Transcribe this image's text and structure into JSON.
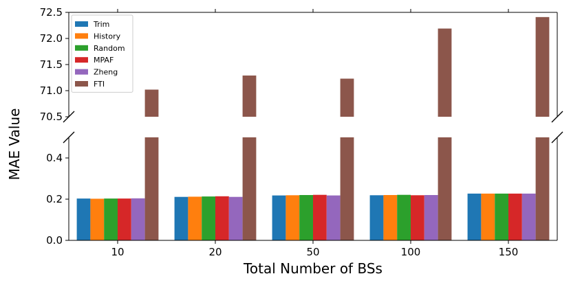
{
  "chart_data": {
    "type": "bar",
    "title": "",
    "xlabel": "Total Number of BSs",
    "ylabel": "MAE Value",
    "categories": [
      "10",
      "20",
      "50",
      "100",
      "150"
    ],
    "broken_axis": true,
    "upper_ylim": [
      70.5,
      72.5
    ],
    "upper_yticks": [
      "70.5",
      "71.0",
      "71.5",
      "72.0",
      "72.5"
    ],
    "lower_ylim": [
      0,
      0.5
    ],
    "lower_yticks": [
      "0.0",
      "0.2",
      "0.4"
    ],
    "legend_position": "top-left",
    "series": [
      {
        "name": "Trim",
        "color": "#1f77b4",
        "values": [
          0.203,
          0.211,
          0.218,
          0.219,
          0.227
        ]
      },
      {
        "name": "History",
        "color": "#ff7f0e",
        "values": [
          0.202,
          0.212,
          0.219,
          0.22,
          0.227
        ]
      },
      {
        "name": "Random",
        "color": "#2ca02c",
        "values": [
          0.203,
          0.213,
          0.22,
          0.221,
          0.227
        ]
      },
      {
        "name": "MPAF",
        "color": "#d62728",
        "values": [
          0.203,
          0.214,
          0.221,
          0.219,
          0.227
        ]
      },
      {
        "name": "Zheng",
        "color": "#9467bd",
        "values": [
          0.204,
          0.211,
          0.218,
          0.22,
          0.227
        ]
      },
      {
        "name": "FTI",
        "color": "#8c564b",
        "values": [
          71.02,
          71.29,
          71.23,
          72.19,
          72.41
        ]
      }
    ]
  }
}
